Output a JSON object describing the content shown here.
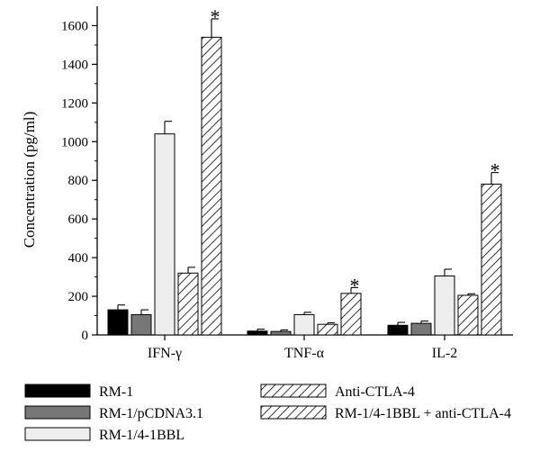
{
  "chart_data": {
    "type": "bar",
    "title": "",
    "xlabel": "",
    "ylabel": "Concentration (pg/ml)",
    "ylim": [
      0,
      1700
    ],
    "yticks": [
      0,
      200,
      400,
      600,
      800,
      1000,
      1200,
      1400,
      1600
    ],
    "categories": [
      "IFN-γ",
      "TNF-α",
      "IL-2"
    ],
    "series": [
      {
        "name": "RM-1",
        "values": [
          130,
          20,
          50
        ],
        "errors": [
          25,
          10,
          15
        ],
        "fill": "#000000",
        "pattern": "solid"
      },
      {
        "name": "RM-1/pCDNA3.1",
        "values": [
          105,
          18,
          60
        ],
        "errors": [
          25,
          8,
          12
        ],
        "fill": "#777777",
        "pattern": "solid"
      },
      {
        "name": "RM-1/4-1BBL",
        "values": [
          1040,
          105,
          305
        ],
        "errors": [
          65,
          12,
          35
        ],
        "fill": "#eeeeee",
        "pattern": "solid"
      },
      {
        "name": "Anti-CTLA-4",
        "values": [
          320,
          55,
          205
        ],
        "errors": [
          30,
          8,
          8
        ],
        "fill": "#ffffff",
        "pattern": "hatch"
      },
      {
        "name": "RM-1/4-1BBL + anti-CTLA-4",
        "values": [
          1540,
          215,
          780
        ],
        "errors": [
          95,
          30,
          60
        ],
        "fill": "#ffffff",
        "pattern": "hatch"
      }
    ],
    "annotations": [
      {
        "text": "*",
        "category": "IFN-γ",
        "series": "RM-1/4-1BBL + anti-CTLA-4"
      },
      {
        "text": "*",
        "category": "TNF-α",
        "series": "RM-1/4-1BBL + anti-CTLA-4"
      },
      {
        "text": "*",
        "category": "IL-2",
        "series": "RM-1/4-1BBL + anti-CTLA-4"
      }
    ],
    "legend_position": "bottom",
    "grid": false
  }
}
